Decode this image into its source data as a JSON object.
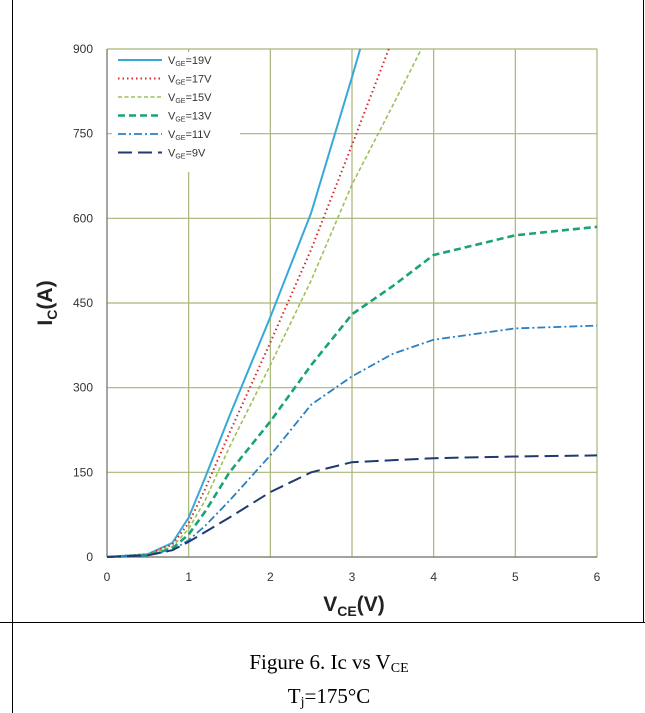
{
  "caption": {
    "line1_main": "Figure 6. Ic vs V",
    "line1_sub": "CE",
    "line2_main": "T",
    "line2_sub": "j",
    "line2_rest": "=175°C"
  },
  "chart_data": {
    "type": "line",
    "title": "",
    "xlabel": "V",
    "xlabel_sub": "CE",
    "xlabel_suffix": "(V)",
    "ylabel": "I",
    "ylabel_sub": "C",
    "ylabel_suffix": "(A)",
    "xlim": [
      0,
      6
    ],
    "ylim": [
      0,
      900
    ],
    "xticks": [
      0,
      1,
      2,
      3,
      4,
      5,
      6
    ],
    "yticks": [
      0,
      150,
      300,
      450,
      600,
      750,
      900
    ],
    "grid": true,
    "legend_placement": "top-left",
    "series": [
      {
        "name_main": "V",
        "name_sub": "GE",
        "name_rest": "=19V",
        "color": "#37a9d9",
        "dash": "solid",
        "points": [
          [
            0,
            0
          ],
          [
            0.5,
            5
          ],
          [
            0.8,
            25
          ],
          [
            1.0,
            70
          ],
          [
            1.2,
            140
          ],
          [
            1.5,
            250
          ],
          [
            2.0,
            425
          ],
          [
            2.5,
            610
          ],
          [
            3.0,
            850
          ],
          [
            3.1,
            900
          ]
        ]
      },
      {
        "name_main": "V",
        "name_sub": "GE",
        "name_rest": "=17V",
        "color": "#d42b2b",
        "dash": "dot",
        "points": [
          [
            0,
            0
          ],
          [
            0.5,
            5
          ],
          [
            0.8,
            22
          ],
          [
            1.0,
            60
          ],
          [
            1.2,
            120
          ],
          [
            1.5,
            220
          ],
          [
            2.0,
            380
          ],
          [
            2.5,
            545
          ],
          [
            3.0,
            730
          ],
          [
            3.45,
            900
          ]
        ]
      },
      {
        "name_main": "V",
        "name_sub": "GE",
        "name_rest": "=15V",
        "color": "#9cc255",
        "dash": "dash-fine",
        "points": [
          [
            0,
            0
          ],
          [
            0.5,
            4
          ],
          [
            0.8,
            18
          ],
          [
            1.0,
            50
          ],
          [
            1.2,
            100
          ],
          [
            1.5,
            195
          ],
          [
            2.0,
            340
          ],
          [
            2.5,
            490
          ],
          [
            3.0,
            660
          ],
          [
            3.5,
            800
          ],
          [
            3.85,
            900
          ]
        ]
      },
      {
        "name_main": "V",
        "name_sub": "GE",
        "name_rest": "=13V",
        "color": "#1aa37a",
        "dash": "dash-bold",
        "points": [
          [
            0,
            0
          ],
          [
            0.5,
            3
          ],
          [
            0.8,
            15
          ],
          [
            1.0,
            40
          ],
          [
            1.2,
            80
          ],
          [
            1.5,
            150
          ],
          [
            2.0,
            240
          ],
          [
            2.5,
            340
          ],
          [
            3.0,
            430
          ],
          [
            3.5,
            480
          ],
          [
            4.0,
            535
          ],
          [
            5.0,
            570
          ],
          [
            6.0,
            585
          ]
        ]
      },
      {
        "name_main": "V",
        "name_sub": "GE",
        "name_rest": "=11V",
        "color": "#2a7fc2",
        "dash": "dash-dot",
        "points": [
          [
            0,
            0
          ],
          [
            0.5,
            3
          ],
          [
            0.8,
            12
          ],
          [
            1.0,
            30
          ],
          [
            1.2,
            55
          ],
          [
            1.5,
            100
          ],
          [
            2.0,
            180
          ],
          [
            2.5,
            270
          ],
          [
            3.0,
            320
          ],
          [
            3.5,
            360
          ],
          [
            4.0,
            385
          ],
          [
            5.0,
            405
          ],
          [
            6.0,
            410
          ]
        ]
      },
      {
        "name_main": "V",
        "name_sub": "GE",
        "name_rest": "=9V",
        "color": "#1f3a6e",
        "dash": "long-dash",
        "points": [
          [
            0,
            0
          ],
          [
            0.5,
            3
          ],
          [
            0.8,
            12
          ],
          [
            1.0,
            27
          ],
          [
            1.5,
            70
          ],
          [
            2.0,
            115
          ],
          [
            2.5,
            150
          ],
          [
            3.0,
            168
          ],
          [
            4.0,
            175
          ],
          [
            5.0,
            178
          ],
          [
            6.0,
            180
          ]
        ]
      }
    ]
  }
}
